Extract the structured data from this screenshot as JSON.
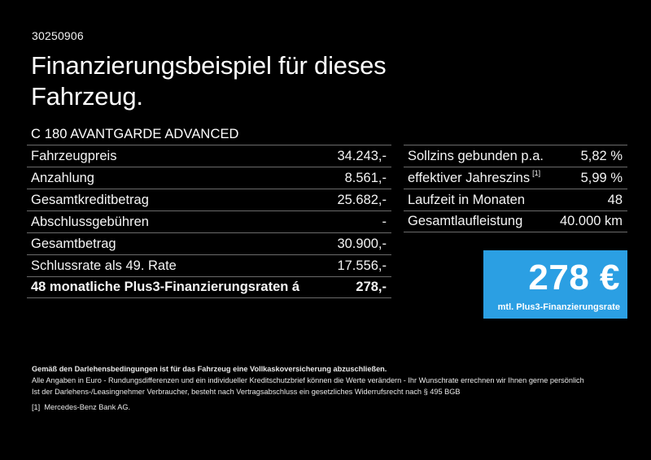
{
  "code": "30250906",
  "title_line1": "Finanzierungsbeispiel für dieses",
  "title_line2": "Fahrzeug.",
  "model": "C 180 AVANTGARDE ADVANCED",
  "left_table": [
    {
      "label": "Fahrzeugpreis",
      "value": "34.243,-"
    },
    {
      "label": "Anzahlung",
      "value": "8.561,-"
    },
    {
      "label": "Gesamtkreditbetrag",
      "value": "25.682,-"
    },
    {
      "label": "Abschlussgebühren",
      "value": "-"
    },
    {
      "label": "Gesamtbetrag",
      "value": "30.900,-"
    },
    {
      "label": "Schlussrate als 49. Rate",
      "value": "17.556,-"
    },
    {
      "label": "48 monatliche Plus3-Finanzierungsraten á",
      "value": "278,-"
    }
  ],
  "right_table": [
    {
      "label": "Sollzins gebunden p.a.",
      "value": "5,82 %"
    },
    {
      "label": "effektiver Jahreszins",
      "sup": "[1]",
      "value": "5,99 %"
    },
    {
      "label": "Laufzeit in Monaten",
      "value": "48"
    },
    {
      "label": "Gesamtlaufleistung",
      "value": "40.000 km"
    }
  ],
  "rate_box": {
    "amount": "278 €",
    "label": "mtl. Plus3-Finanzierungsrate",
    "color": "#2b9fe3"
  },
  "footer": {
    "line1": "Gemäß den Darlehensbedingungen ist für das Fahrzeug eine Vollkaskoversicherung abzuschließen.",
    "line2": "Alle Angaben in Euro - Rundungsdifferenzen und ein individueller Kreditschutzbrief können die Werte verändern - Ihr Wunschrate errechnen wir Ihnen gerne persönlich",
    "line3": "Ist der Darlehens-/Leasingnehmer Verbraucher, besteht nach Vertragsabschluss ein gesetzliches Widerrufsrecht nach § 495 BGB",
    "footnote_marker": "[1]",
    "footnote_text": "Mercedes-Benz Bank AG."
  }
}
